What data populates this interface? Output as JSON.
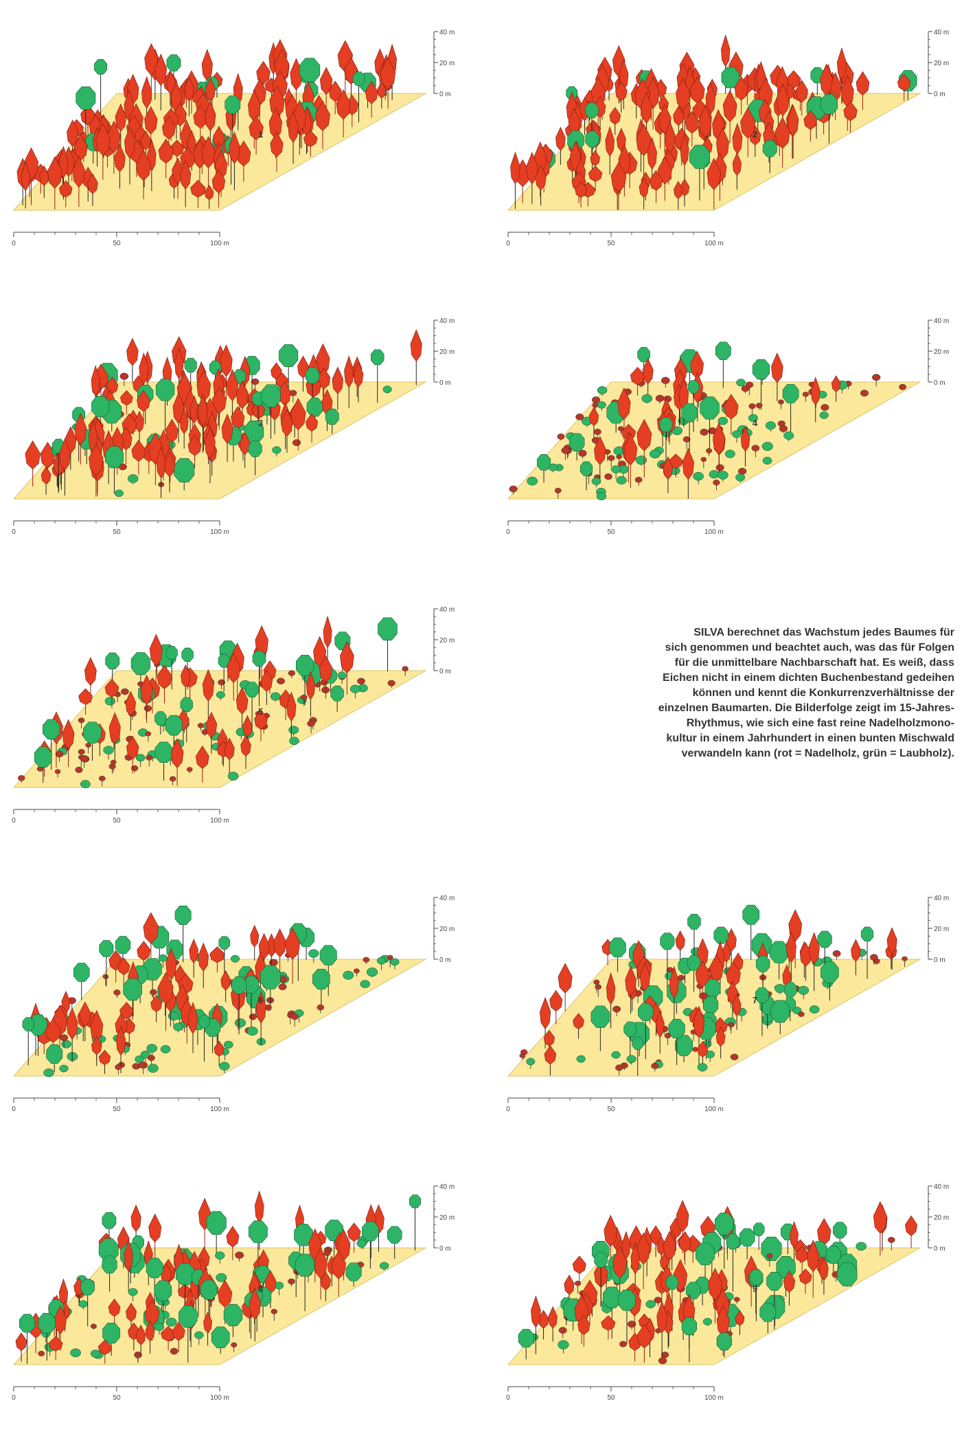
{
  "colors": {
    "ground": "#fbe89a",
    "conifer": "#e43f22",
    "broadleaf": "#2db565",
    "axis": "#444444"
  },
  "legend_text": {
    "conifer": "rot = Nadelholz",
    "broadleaf": "grün = Laubholz"
  },
  "caption": [
    "SILVA berechnet das Wachstum jedes Baumes für",
    "sich genommen und beachtet auch, was das für Folgen",
    "für die unmittelbare Nachbarschaft hat. Es weiß, dass",
    "Eichen nicht in einem dichten Buchenbestand gedeihen",
    "können und kennt die Konkurrenzverhältnisse der",
    "einzelnen Baumarten. Die Bilderfolge zeigt im 15-Jahres-",
    "Rhythmus, wie sich eine fast reine Nadelholzmono-",
    "kultur in einem Jahrhundert in einen bunten Mischwald",
    "verwandeln kann (rot = Nadelholz, grün = Laubholz)."
  ],
  "chart_data": [
    {
      "type": "scatter",
      "label": "1",
      "x_ticks": [
        "0",
        "50",
        "100 m"
      ],
      "height_ticks": [
        "40 m",
        "20 m",
        "0 m"
      ],
      "ylim": [
        0,
        40
      ],
      "share_conifer": 0.9,
      "share_broadleaf": 0.1,
      "share_understory": 0.0
    },
    {
      "type": "scatter",
      "label": "2",
      "x_ticks": [
        "0",
        "50",
        "100 m"
      ],
      "height_ticks": [
        "40 m",
        "20 m",
        "0 m"
      ],
      "ylim": [
        0,
        40
      ],
      "share_conifer": 0.88,
      "share_broadleaf": 0.12,
      "share_understory": 0.0
    },
    {
      "type": "scatter",
      "label": "3",
      "x_ticks": [
        "0",
        "50",
        "100 m"
      ],
      "height_ticks": [
        "40 m",
        "20 m",
        "0 m"
      ],
      "ylim": [
        0,
        40
      ],
      "share_conifer": 0.72,
      "share_broadleaf": 0.15,
      "share_understory": 0.13
    },
    {
      "type": "scatter",
      "label": "4",
      "x_ticks": [
        "0",
        "50",
        "100 m"
      ],
      "height_ticks": [
        "40 m",
        "20 m",
        "0 m"
      ],
      "ylim": [
        0,
        40
      ],
      "share_conifer": 0.18,
      "share_broadleaf": 0.12,
      "share_understory": 0.7
    },
    {
      "type": "scatter",
      "label": "5",
      "x_ticks": [
        "0",
        "50",
        "100 m"
      ],
      "height_ticks": [
        "40 m",
        "20 m",
        "0 m"
      ],
      "ylim": [
        0,
        40
      ],
      "share_conifer": 0.25,
      "share_broadleaf": 0.12,
      "share_understory": 0.63
    },
    {
      "type": "scatter",
      "label": "6",
      "x_ticks": [
        "0",
        "50",
        "100 m"
      ],
      "height_ticks": [
        "40 m",
        "20 m",
        "0 m"
      ],
      "ylim": [
        0,
        40
      ],
      "share_conifer": 0.3,
      "share_broadleaf": 0.15,
      "share_understory": 0.55
    },
    {
      "type": "scatter",
      "label": "7",
      "x_ticks": [
        "0",
        "50",
        "100 m"
      ],
      "height_ticks": [
        "40 m",
        "20 m",
        "0 m"
      ],
      "ylim": [
        0,
        40
      ],
      "share_conifer": 0.3,
      "share_broadleaf": 0.2,
      "share_understory": 0.5
    },
    {
      "type": "scatter",
      "label": "8",
      "x_ticks": [
        "0",
        "50",
        "100 m"
      ],
      "height_ticks": [
        "40 m",
        "20 m",
        "0 m"
      ],
      "ylim": [
        0,
        40
      ],
      "share_conifer": 0.45,
      "share_broadleaf": 0.25,
      "share_understory": 0.3
    },
    {
      "type": "scatter",
      "label": "9",
      "x_ticks": [
        "0",
        "50",
        "100 m"
      ],
      "height_ticks": [
        "40 m",
        "20 m",
        "0 m"
      ],
      "ylim": [
        0,
        40
      ],
      "share_conifer": 0.45,
      "share_broadleaf": 0.3,
      "share_understory": 0.25
    }
  ]
}
